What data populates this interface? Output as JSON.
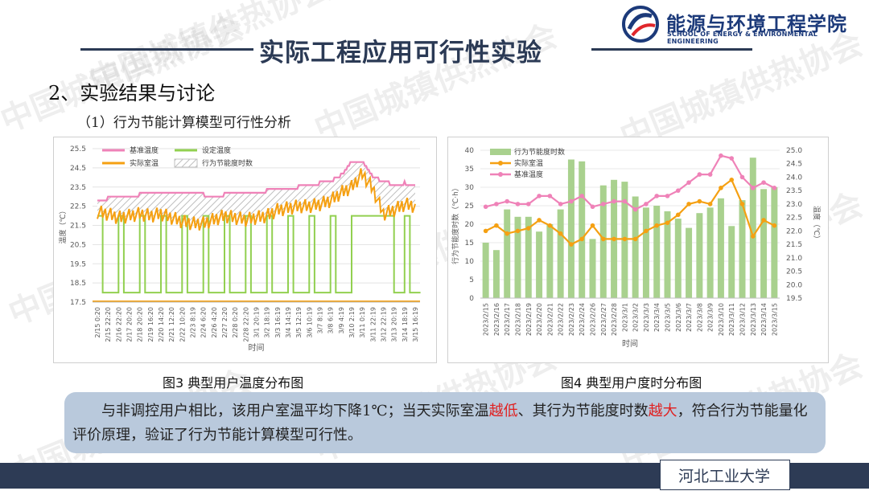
{
  "header": {
    "title": "实际工程应用可行性实验",
    "logo_cn": "能源与环境工程学院",
    "logo_en": "SCHOOL OF ENERGY & ENVIRONMENTAL ENGINEERING"
  },
  "watermark": "中国城镇供热协会",
  "section_title": "2、实验结果与讨论",
  "sub_title": "（1）行为节能计算模型可行性分析",
  "captions": [
    "图3 典型用户温度分布图",
    "图4 典型用户度时分布图"
  ],
  "conclusion": {
    "p1": "与非调控用户相比，该用户室温平均下降1℃；当天实际室温",
    "r1": "越低",
    "p2": "、其行为节能度时数",
    "r2": "越大",
    "p3": "，符合行为节能量化评价原理，验证了行为节能计算模型可行性。"
  },
  "footer": "河北工业大学",
  "colors": {
    "accent": "#2b3a55",
    "base_temp": "#ef82b8",
    "actual_temp": "#f5a012",
    "set_temp": "#92d050",
    "bar": "#a9d18e"
  },
  "chart_data": [
    {
      "type": "line",
      "ylabel": "温度（℃）",
      "xlabel": "时间",
      "ylim": [
        17.5,
        25.5
      ],
      "yticks": [
        17.5,
        18.5,
        19.5,
        20.5,
        21.5,
        22.5,
        23.5,
        24.5,
        25.5
      ],
      "legend": [
        "基准温度",
        "设定温度",
        "实际室温",
        "行为节能度时数"
      ],
      "xticks": [
        "2/15 0:20",
        "2/15 22:20",
        "2/16 22:20",
        "2/17 20:20",
        "2/18 20:20",
        "2/19 16:20",
        "2/20 14:20",
        "2/21 12:20",
        "2/22 10:20",
        "2/23 8:19",
        "2/24 6:20",
        "2/26 4:20",
        "2/27 2:20",
        "2/28 0:20",
        "2/28 22:20",
        "3/1 20:19",
        "3/2 18:19",
        "3/3 16:19",
        "3/4 14:19",
        "3/5 12:19",
        "3/6 10:19",
        "3/7 8:19",
        "3/8 6:19",
        "3/9 4:19",
        "3/10 2:19",
        "3/11 0:19",
        "3/11 22:19",
        "3/12 22:19",
        "3/13 20:19",
        "3/14 18:19",
        "3/15 16:19"
      ],
      "series": [
        {
          "name": "基准温度",
          "values": [
            22.8,
            22.9,
            23.0,
            23.0,
            23.1,
            23.1,
            23.1,
            23.2,
            23.2,
            23.1,
            23.1,
            23.0,
            23.1,
            23.1,
            23.1,
            23.2,
            23.3,
            23.4,
            23.4,
            23.5,
            23.6,
            23.7,
            23.8,
            24.1,
            24.8,
            24.8,
            24.0,
            23.8,
            23.6,
            23.7,
            23.6
          ]
        },
        {
          "name": "实际室温",
          "values": [
            22.2,
            22.1,
            21.9,
            22.0,
            22.1,
            22.0,
            22.1,
            21.9,
            21.7,
            21.6,
            21.6,
            21.8,
            22.0,
            21.9,
            21.8,
            21.9,
            22.0,
            22.3,
            22.4,
            22.5,
            22.5,
            22.6,
            22.8,
            23.2,
            23.5,
            24.2,
            23.4,
            22.1,
            22.3,
            22.6,
            22.5
          ]
        },
        {
          "name": "设定温度",
          "values": [
            22,
            18,
            22,
            18,
            22,
            18,
            22,
            18,
            22,
            18,
            22,
            18,
            22,
            18,
            22,
            18,
            22,
            18,
            22,
            18,
            22,
            18,
            22,
            18,
            22,
            22,
            22,
            22,
            18,
            22,
            18
          ]
        }
      ]
    },
    {
      "type": "bar",
      "ylabel": "行为节能度时数（℃·h）",
      "y2label": "温度（℃）",
      "ylim": [
        0,
        40
      ],
      "yticks": [
        0,
        5,
        10,
        15,
        20,
        25,
        30,
        35,
        40
      ],
      "y2lim": [
        19.5,
        25.0
      ],
      "y2ticks": [
        19.5,
        20.0,
        20.5,
        21.0,
        21.5,
        22.0,
        22.5,
        23.0,
        23.5,
        24.0,
        24.5,
        25.0
      ],
      "legend": [
        "行为节能度时数",
        "实际室温",
        "基准温度"
      ],
      "categories": [
        "2023/2/15",
        "2023/2/16",
        "2023/2/17",
        "2023/2/18",
        "2023/2/19",
        "2023/2/20",
        "2023/2/21",
        "2023/2/22",
        "2023/2/23",
        "2023/2/24",
        "2023/2/26",
        "2023/2/27",
        "2023/2/28",
        "2023/3/1",
        "2023/3/2",
        "2023/3/3",
        "2023/3/4",
        "2023/3/5",
        "2023/3/6",
        "2023/3/7",
        "2023/3/8",
        "2023/3/9",
        "2023/3/10",
        "2023/3/11",
        "2023/3/12",
        "2023/3/13",
        "2023/3/14",
        "2023/3/15"
      ],
      "series": [
        {
          "name": "行为节能度时数",
          "values": [
            15,
            13,
            24,
            22,
            22,
            18,
            20,
            24,
            37.5,
            37,
            16,
            30.5,
            32,
            31.5,
            27.5,
            24.5,
            25,
            23.5,
            21.5,
            19,
            23,
            24.5,
            27,
            19.5,
            26.5,
            38,
            29.5,
            30
          ]
        },
        {
          "name": "实际室温",
          "values": [
            22.0,
            22.2,
            21.9,
            22.0,
            22.1,
            22.4,
            22.2,
            21.9,
            21.5,
            21.7,
            22.2,
            21.7,
            21.7,
            21.7,
            21.7,
            22.0,
            22.2,
            22.3,
            22.6,
            23.0,
            23.1,
            23.0,
            23.6,
            23.9,
            23.0,
            21.8,
            22.4,
            22.2
          ]
        },
        {
          "name": "基准温度",
          "values": [
            22.9,
            23.0,
            23.1,
            23.0,
            23.0,
            23.3,
            23.3,
            23.0,
            23.1,
            23.3,
            22.9,
            23.0,
            23.1,
            23.1,
            22.8,
            23.0,
            23.3,
            23.3,
            23.5,
            23.8,
            24.1,
            24.1,
            24.8,
            24.7,
            24.0,
            23.6,
            23.8,
            23.6
          ]
        }
      ]
    }
  ]
}
